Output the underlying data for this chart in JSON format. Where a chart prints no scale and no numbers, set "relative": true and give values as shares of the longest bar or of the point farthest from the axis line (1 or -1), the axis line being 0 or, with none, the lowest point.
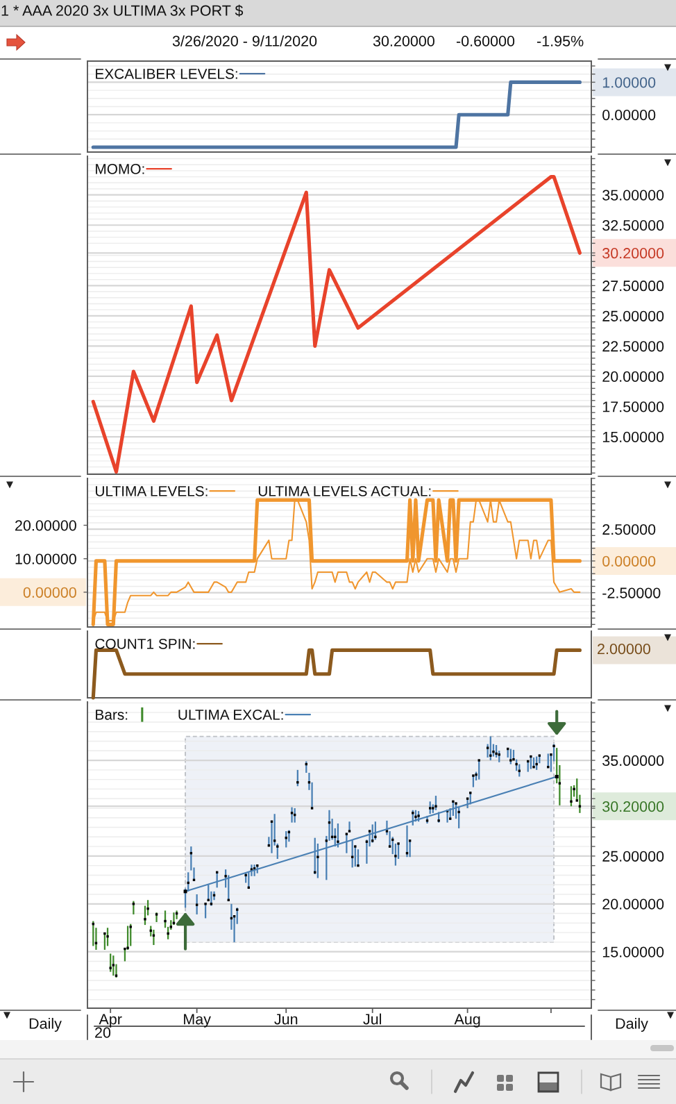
{
  "chart_data": [
    {
      "type": "line",
      "title": "1 * AAA 2020 3x ULTIMA 3x PORT $",
      "subtitle": "3/26/2020 - 9/11/2020",
      "annotations": [
        "30.20000",
        "-0.60000",
        "-1.95%"
      ],
      "series": [
        {
          "name": "EXCALIBER LEVELS:",
          "color": "#4e74a2",
          "x": [
            "2020-03-26",
            "2020-07-30",
            "2020-07-31",
            "2020-08-17",
            "2020-08-18",
            "2020-09-11"
          ],
          "values": [
            -1,
            -1,
            0,
            0,
            1,
            1
          ]
        }
      ],
      "xlim": [
        "2020-03-24",
        "2020-09-15"
      ],
      "ylim": [
        -1.15,
        1.65
      ],
      "yticks": [
        {
          "value": 1,
          "label": "1.00000"
        },
        {
          "value": 0,
          "label": "0.00000"
        },
        {
          "value": -1,
          "label": null
        },
        {
          "value": -0.75,
          "label": null
        },
        {
          "value": -0.5,
          "label": null
        },
        {
          "value": -0.25,
          "label": null
        },
        {
          "value": 0.25,
          "label": null
        },
        {
          "value": 0.5,
          "label": null
        },
        {
          "value": 0.75,
          "label": null
        },
        {
          "value": 1.25,
          "label": null
        },
        {
          "value": 1.5,
          "label": null
        }
      ],
      "grid": "y",
      "legend": "top left",
      "tick_labels": "y"
    },
    {
      "type": "line",
      "series": [
        {
          "name": "MOMO:",
          "color": "#e8432b",
          "x": [
            "2020-03-26",
            "2020-04-03",
            "2020-04-09",
            "2020-04-16",
            "2020-04-29",
            "2020-05-01",
            "2020-05-08",
            "2020-05-13",
            "2020-06-08",
            "2020-06-11",
            "2020-06-16",
            "2020-06-26",
            "2020-09-01",
            "2020-09-02",
            "2020-09-11"
          ],
          "values": [
            17.9,
            12.1,
            20.4,
            16.3,
            25.8,
            19.5,
            23.4,
            18.0,
            35.2,
            22.5,
            28.8,
            24.0,
            36.5,
            36.5,
            30.2
          ]
        }
      ],
      "xlim": [
        "2020-03-24",
        "2020-09-15"
      ],
      "ylim": [
        11.9,
        38.2
      ],
      "yticks": [
        {
          "value": 15,
          "label": "15.00000"
        },
        {
          "value": 17.5,
          "label": "17.50000"
        },
        {
          "value": 20,
          "label": "20.00000"
        },
        {
          "value": 22.5,
          "label": "22.50000"
        },
        {
          "value": 25,
          "label": "25.00000"
        },
        {
          "value": 27.5,
          "label": "27.50000"
        },
        {
          "value": 30.2,
          "label": "30.20000"
        },
        {
          "value": 32.5,
          "label": "32.50000"
        },
        {
          "value": 35,
          "label": "35.00000"
        },
        {
          "value": 12,
          "label": null
        },
        {
          "value": 12.5,
          "label": null
        },
        {
          "value": 13,
          "label": null
        },
        {
          "value": 13.5,
          "label": null
        },
        {
          "value": 14,
          "label": null
        },
        {
          "value": 14.5,
          "label": null
        },
        {
          "value": 15.5,
          "label": null
        },
        {
          "value": 16,
          "label": null
        },
        {
          "value": 16.5,
          "label": null
        },
        {
          "value": 17,
          "label": null
        },
        {
          "value": 18,
          "label": null
        },
        {
          "value": 18.5,
          "label": null
        },
        {
          "value": 19,
          "label": null
        },
        {
          "value": 19.5,
          "label": null
        },
        {
          "value": 20.5,
          "label": null
        },
        {
          "value": 21,
          "label": null
        },
        {
          "value": 21.5,
          "label": null
        },
        {
          "value": 22,
          "label": null
        },
        {
          "value": 23,
          "label": null
        },
        {
          "value": 23.5,
          "label": null
        },
        {
          "value": 24,
          "label": null
        },
        {
          "value": 24.5,
          "label": null
        },
        {
          "value": 25.5,
          "label": null
        },
        {
          "value": 26,
          "label": null
        },
        {
          "value": 26.5,
          "label": null
        },
        {
          "value": 27,
          "label": null
        },
        {
          "value": 28,
          "label": null
        },
        {
          "value": 28.5,
          "label": null
        },
        {
          "value": 29,
          "label": null
        },
        {
          "value": 29.5,
          "label": null
        },
        {
          "value": 30,
          "label": null
        },
        {
          "value": 31,
          "label": null
        },
        {
          "value": 31.5,
          "label": null
        },
        {
          "value": 32,
          "label": null
        },
        {
          "value": 33,
          "label": null
        },
        {
          "value": 33.5,
          "label": null
        },
        {
          "value": 34,
          "label": null
        },
        {
          "value": 34.5,
          "label": null
        },
        {
          "value": 35.5,
          "label": null
        },
        {
          "value": 36,
          "label": null
        },
        {
          "value": 36.5,
          "label": null
        },
        {
          "value": 37,
          "label": null
        },
        {
          "value": 37.5,
          "label": null
        },
        {
          "value": 38,
          "label": null
        }
      ],
      "grid": "y",
      "legend": "top left",
      "tick_labels": "y"
    },
    {
      "type": "line",
      "x": [
        "2020-03-26",
        "2020-03-27",
        "2020-03-30",
        "2020-03-31",
        "2020-04-01",
        "2020-04-02",
        "2020-04-03",
        "2020-04-06",
        "2020-04-07",
        "2020-04-08",
        "2020-04-09",
        "2020-04-13",
        "2020-04-14",
        "2020-04-15",
        "2020-04-16",
        "2020-04-17",
        "2020-04-20",
        "2020-04-21",
        "2020-04-22",
        "2020-04-23",
        "2020-04-24",
        "2020-04-27",
        "2020-04-28",
        "2020-04-29",
        "2020-04-30",
        "2020-05-01",
        "2020-05-04",
        "2020-05-05",
        "2020-05-06",
        "2020-05-07",
        "2020-05-08",
        "2020-05-11",
        "2020-05-12",
        "2020-05-13",
        "2020-05-14",
        "2020-05-15",
        "2020-05-18",
        "2020-05-19",
        "2020-05-20",
        "2020-05-21",
        "2020-05-22",
        "2020-05-26",
        "2020-05-27",
        "2020-05-28",
        "2020-05-29",
        "2020-06-01",
        "2020-06-02",
        "2020-06-03",
        "2020-06-04",
        "2020-06-05",
        "2020-06-08",
        "2020-06-09",
        "2020-06-10",
        "2020-06-11",
        "2020-06-12",
        "2020-06-15",
        "2020-06-16",
        "2020-06-17",
        "2020-06-18",
        "2020-06-19",
        "2020-06-22",
        "2020-06-23",
        "2020-06-24",
        "2020-06-25",
        "2020-06-26",
        "2020-06-29",
        "2020-06-30",
        "2020-07-01",
        "2020-07-02",
        "2020-07-06",
        "2020-07-07",
        "2020-07-08",
        "2020-07-09",
        "2020-07-10",
        "2020-07-13",
        "2020-07-14",
        "2020-07-15",
        "2020-07-16",
        "2020-07-17",
        "2020-07-20",
        "2020-07-21",
        "2020-07-22",
        "2020-07-23",
        "2020-07-24",
        "2020-07-27",
        "2020-07-28",
        "2020-07-29",
        "2020-07-30",
        "2020-07-31",
        "2020-08-03",
        "2020-08-04",
        "2020-08-05",
        "2020-08-06",
        "2020-08-07",
        "2020-08-10",
        "2020-08-11",
        "2020-08-12",
        "2020-08-13",
        "2020-08-14",
        "2020-08-17",
        "2020-08-18",
        "2020-08-19",
        "2020-08-20",
        "2020-08-21",
        "2020-08-24",
        "2020-08-25",
        "2020-08-26",
        "2020-08-27",
        "2020-08-28",
        "2020-08-31",
        "2020-09-01",
        "2020-09-02",
        "2020-09-03",
        "2020-09-04",
        "2020-09-08",
        "2020-09-09",
        "2020-09-10",
        "2020-09-11"
      ],
      "series": [
        {
          "name": "ULTIMA LEVELS:",
          "color": "#f0962e",
          "axis": "y2",
          "values": [
            -5,
            0,
            0,
            -5,
            -5,
            -5,
            0,
            0,
            0,
            0,
            0,
            0,
            0,
            0,
            0,
            0,
            0,
            0,
            0,
            0,
            0,
            0,
            0,
            0,
            0,
            0,
            0,
            0,
            0,
            0,
            0,
            0,
            0,
            0,
            0,
            0,
            0,
            0,
            0,
            0,
            4.8,
            4.8,
            4.8,
            4.8,
            4.8,
            4.8,
            4.8,
            4.8,
            4.8,
            4.8,
            4.8,
            4.8,
            0,
            0,
            0,
            0,
            0,
            0,
            0,
            0,
            0,
            0,
            0,
            0,
            0,
            0,
            0,
            0,
            0,
            0,
            0,
            0,
            0,
            0,
            0,
            4.8,
            0,
            4.8,
            0,
            4.8,
            4.8,
            4.8,
            0,
            4.8,
            0,
            4.8,
            4.8,
            0,
            4.8,
            4.8,
            4.8,
            4.8,
            4.8,
            4.8,
            4.8,
            4.8,
            4.8,
            4.8,
            4.8,
            4.8,
            4.8,
            4.8,
            4.8,
            4.8,
            4.8,
            4.8,
            4.8,
            4.8,
            4.8,
            4.8,
            4.8,
            0,
            0,
            0,
            0,
            0,
            0,
            0
          ]
        },
        {
          "name": "ULTIMA LEVELS ACTUAL:",
          "color": "#f0962e",
          "values": [
            -8.5,
            -6,
            -6,
            -8.5,
            -8.5,
            -8.5,
            -6,
            -6,
            -3,
            -1,
            -1,
            -1,
            -1,
            -1,
            0,
            -1,
            -1,
            -1,
            0,
            0,
            0,
            1.5,
            3,
            1.5,
            0,
            0,
            0,
            0,
            1.5,
            3,
            3,
            1.5,
            0,
            0,
            1.5,
            3,
            3,
            6,
            6,
            6,
            10,
            15.5,
            10,
            10,
            10,
            10,
            15.5,
            15.5,
            27.5,
            27.5,
            21,
            15.5,
            1,
            3,
            6,
            6,
            6,
            6,
            3,
            6,
            6,
            3,
            3,
            1,
            3,
            6,
            3,
            6,
            6,
            3,
            3,
            1,
            3,
            3,
            3,
            10,
            6,
            10,
            6,
            10,
            10,
            10,
            6,
            10,
            6,
            10,
            10,
            6,
            10,
            10,
            21,
            21,
            27.5,
            27.5,
            21,
            27.5,
            21,
            21,
            27.5,
            21,
            21,
            15.5,
            10,
            15.5,
            15.5,
            10,
            15.5,
            15.5,
            10,
            15.5,
            15.5,
            3,
            1.5,
            0,
            1,
            0,
            0,
            0
          ]
        }
      ],
      "xlim": [
        "2020-03-24",
        "2020-09-15"
      ],
      "ylim": [
        -10.4,
        34
      ],
      "yticks": [
        {
          "value": 0,
          "label": "0.00000"
        },
        {
          "value": 10,
          "label": "10.00000"
        },
        {
          "value": 20,
          "label": "20.00000"
        }
      ],
      "y2lim": [
        -5.2,
        6.5
      ],
      "y2ticks": [
        {
          "value": -2.5,
          "label": "-2.50000"
        },
        {
          "value": 0,
          "label": "0.00000"
        },
        {
          "value": 2.5,
          "label": "2.50000"
        },
        {
          "value": -5,
          "label": null
        },
        {
          "value": -4.5,
          "label": null
        },
        {
          "value": -4,
          "label": null
        },
        {
          "value": -3.5,
          "label": null
        },
        {
          "value": -3,
          "label": null
        },
        {
          "value": -2,
          "label": null
        },
        {
          "value": -1.5,
          "label": null
        },
        {
          "value": -1,
          "label": null
        },
        {
          "value": -0.5,
          "label": null
        },
        {
          "value": 0.5,
          "label": null
        },
        {
          "value": 1,
          "label": null
        },
        {
          "value": 1.5,
          "label": null
        },
        {
          "value": 2,
          "label": null
        },
        {
          "value": 3,
          "label": null
        },
        {
          "value": 3.5,
          "label": null
        },
        {
          "value": 4,
          "label": null
        },
        {
          "value": 4.5,
          "label": null
        },
        {
          "value": 5,
          "label": null
        },
        {
          "value": 5.5,
          "label": null
        },
        {
          "value": 6,
          "label": null
        },
        {
          "value": 6.5,
          "label": null
        }
      ],
      "grid": "y2",
      "legend": "top left",
      "tick_labels": "y"
    },
    {
      "type": "line",
      "relative": true,
      "series": [
        {
          "name": "COUNT1 SPIN:",
          "color": "#8c5a1e",
          "x": [
            "2020-03-26",
            "2020-03-27",
            "2020-04-03",
            "2020-04-06",
            "2020-06-08",
            "2020-06-09",
            "2020-06-10",
            "2020-06-11",
            "2020-06-16",
            "2020-06-17",
            "2020-07-21",
            "2020-07-22",
            "2020-09-02",
            "2020-09-03",
            "2020-09-11"
          ],
          "values": [
            0,
            1,
            1,
            0.5,
            0.5,
            1,
            1,
            0.5,
            0.5,
            1,
            1,
            0.5,
            0.5,
            1,
            1
          ]
        }
      ],
      "xlim": [
        "2020-03-24",
        "2020-09-15"
      ],
      "annotations": [
        "2.00000"
      ],
      "legend": "top left",
      "tick_labels": false
    },
    {
      "type": "bar",
      "series": [
        {
          "type": "bar",
          "name": "Bars:",
          "x": [
            "2020-03-26",
            "2020-03-27",
            "2020-03-30",
            "2020-03-31",
            "2020-04-01",
            "2020-04-02",
            "2020-04-03",
            "2020-04-06",
            "2020-04-07",
            "2020-04-08",
            "2020-04-09",
            "2020-04-13",
            "2020-04-14",
            "2020-04-15",
            "2020-04-16",
            "2020-04-17",
            "2020-04-20",
            "2020-04-21",
            "2020-04-22",
            "2020-04-23",
            "2020-04-24",
            "2020-04-27",
            "2020-04-28",
            "2020-04-29",
            "2020-04-30",
            "2020-05-01",
            "2020-05-04",
            "2020-05-05",
            "2020-05-06",
            "2020-05-07",
            "2020-05-08",
            "2020-05-11",
            "2020-05-12",
            "2020-05-13",
            "2020-05-14",
            "2020-05-15",
            "2020-05-18",
            "2020-05-19",
            "2020-05-20",
            "2020-05-21",
            "2020-05-22",
            "2020-05-26",
            "2020-05-27",
            "2020-05-28",
            "2020-05-29",
            "2020-06-01",
            "2020-06-02",
            "2020-06-03",
            "2020-06-04",
            "2020-06-05",
            "2020-06-08",
            "2020-06-09",
            "2020-06-10",
            "2020-06-11",
            "2020-06-12",
            "2020-06-15",
            "2020-06-16",
            "2020-06-17",
            "2020-06-18",
            "2020-06-19",
            "2020-06-22",
            "2020-06-23",
            "2020-06-24",
            "2020-06-25",
            "2020-06-26",
            "2020-06-29",
            "2020-06-30",
            "2020-07-01",
            "2020-07-02",
            "2020-07-06",
            "2020-07-07",
            "2020-07-08",
            "2020-07-09",
            "2020-07-10",
            "2020-07-13",
            "2020-07-14",
            "2020-07-15",
            "2020-07-16",
            "2020-07-17",
            "2020-07-20",
            "2020-07-21",
            "2020-07-22",
            "2020-07-23",
            "2020-07-24",
            "2020-07-27",
            "2020-07-28",
            "2020-07-29",
            "2020-07-30",
            "2020-07-31",
            "2020-08-03",
            "2020-08-04",
            "2020-08-05",
            "2020-08-06",
            "2020-08-07",
            "2020-08-10",
            "2020-08-11",
            "2020-08-12",
            "2020-08-13",
            "2020-08-14",
            "2020-08-17",
            "2020-08-18",
            "2020-08-19",
            "2020-08-20",
            "2020-08-21",
            "2020-08-24",
            "2020-08-25",
            "2020-08-26",
            "2020-08-27",
            "2020-08-28",
            "2020-08-31",
            "2020-09-01",
            "2020-09-02",
            "2020-09-03",
            "2020-09-04",
            "2020-09-08",
            "2020-09-09",
            "2020-09-10",
            "2020-09-11"
          ],
          "base": [
            15.6,
            15.2,
            15.2,
            15.6,
            12.9,
            12.5,
            12.3,
            14.0,
            15.2,
            15.6,
            18.9,
            17.8,
            18.8,
            16.6,
            15.7,
            18.1,
            17.5,
            16.3,
            17.3,
            17.8,
            18.4,
            19.6,
            21.3,
            23.5,
            22.4,
            18.9,
            18.5,
            20.3,
            19.8,
            20.4,
            21.7,
            21.7,
            20.4,
            17.3,
            16.0,
            17.9,
            22.2,
            21.7,
            22.9,
            22.9,
            23.2,
            26.0,
            25.3,
            26.1,
            24.7,
            25.9,
            26.5,
            28.5,
            28.5,
            32.3,
            33.7,
            31.9,
            29.9,
            23.1,
            22.7,
            22.5,
            26.6,
            26.7,
            26.0,
            25.9,
            25.3,
            27.5,
            23.8,
            23.9,
            23.9,
            24.2,
            26.0,
            26.4,
            26.7,
            27.2,
            25.9,
            25.2,
            24.0,
            24.7,
            24.9,
            24.9,
            28.2,
            28.6,
            28.6,
            28.4,
            29.4,
            29.5,
            29.8,
            28.5,
            28.5,
            28.8,
            29.2,
            28.9,
            27.9,
            30.0,
            30.4,
            32.2,
            32.9,
            33.0,
            35.3,
            35.0,
            35.4,
            35.3,
            34.8,
            35.3,
            34.6,
            35.1,
            33.9,
            33.3,
            33.8,
            34.1,
            34.2,
            34.0,
            34.7,
            34.3,
            33.8,
            34.9,
            32.6,
            30.3,
            30.2,
            31.2,
            30.8,
            29.5
          ],
          "values": [
            2.6,
            2.3,
            1.8,
            1.9,
            1.9,
            2.1,
            1.4,
            1.4,
            2.5,
            2.3,
            1.4,
            2.0,
            1.6,
            1.1,
            1.6,
            1.0,
            1.8,
            1.3,
            1.0,
            1.3,
            0.9,
            2.0,
            2.0,
            2.5,
            1.4,
            2.1,
            1.6,
            1.7,
            1.5,
            0.9,
            1.6,
            1.9,
            2.6,
            2.7,
            2.7,
            1.7,
            1.0,
            1.6,
            1.2,
            1.2,
            0.9,
            1.0,
            3.4,
            3.3,
            1.6,
            1.7,
            1.2,
            1.6,
            1.5,
            1.7,
            1.2,
            1.8,
            2.8,
            3.8,
            3.6,
            4.6,
            3.2,
            2.2,
            1.9,
            2.5,
            2.1,
            1.1,
            2.9,
            2.2,
            1.8,
            2.5,
            1.6,
            1.9,
            1.9,
            1.5,
            1.7,
            1.8,
            2.3,
            1.6,
            3.3,
            1.7,
            1.6,
            1.2,
            1.1,
            0.8,
            1.3,
            0.9,
            1.5,
            1.1,
            1.3,
            1.2,
            1.5,
            1.7,
            2.2,
            1.0,
            1.3,
            1.3,
            0.9,
            2.0,
            1.4,
            2.5,
            1.3,
            1.3,
            1.2,
            0.9,
            1.6,
            1.0,
            1.2,
            1.3,
            1.2,
            1.3,
            1.1,
            1.4,
            0.9,
            1.4,
            1.9,
            1.8,
            3.7,
            4.2,
            2.1,
            1.2,
            2.3,
            1.9
          ],
          "colors": [
            "#3f8a2b",
            "#3f8a2b",
            "#3f8a2b",
            "#3f8a2b",
            "#3f8a2b",
            "#3f8a2b",
            "#3f8a2b",
            "#3f8a2b",
            "#3f8a2b",
            "#3f8a2b",
            "#3f8a2b",
            "#3f8a2b",
            "#3f8a2b",
            "#3f8a2b",
            "#3f8a2b",
            "#3f8a2b",
            "#3f8a2b",
            "#3f8a2b",
            "#3f8a2b",
            "#3f8a2b",
            "#3f8a2b",
            "#4a80b4",
            "#4a80b4",
            "#4a80b4",
            "#4a80b4",
            "#4a80b4",
            "#4a80b4",
            "#4a80b4",
            "#4a80b4",
            "#4a80b4",
            "#4a80b4",
            "#4a80b4",
            "#4a80b4",
            "#4a80b4",
            "#4a80b4",
            "#4a80b4",
            "#4a80b4",
            "#4a80b4",
            "#4a80b4",
            "#4a80b4",
            "#4a80b4",
            "#4a80b4",
            "#4a80b4",
            "#4a80b4",
            "#4a80b4",
            "#4a80b4",
            "#4a80b4",
            "#4a80b4",
            "#4a80b4",
            "#4a80b4",
            "#4a80b4",
            "#4a80b4",
            "#4a80b4",
            "#4a80b4",
            "#4a80b4",
            "#4a80b4",
            "#4a80b4",
            "#4a80b4",
            "#4a80b4",
            "#4a80b4",
            "#4a80b4",
            "#4a80b4",
            "#4a80b4",
            "#4a80b4",
            "#4a80b4",
            "#4a80b4",
            "#4a80b4",
            "#4a80b4",
            "#4a80b4",
            "#4a80b4",
            "#4a80b4",
            "#4a80b4",
            "#4a80b4",
            "#4a80b4",
            "#4a80b4",
            "#4a80b4",
            "#4a80b4",
            "#4a80b4",
            "#4a80b4",
            "#4a80b4",
            "#4a80b4",
            "#4a80b4",
            "#4a80b4",
            "#4a80b4",
            "#4a80b4",
            "#4a80b4",
            "#4a80b4",
            "#4a80b4",
            "#4a80b4",
            "#4a80b4",
            "#4a80b4",
            "#4a80b4",
            "#4a80b4",
            "#4a80b4",
            "#4a80b4",
            "#4a80b4",
            "#4a80b4",
            "#4a80b4",
            "#4a80b4",
            "#4a80b4",
            "#4a80b4",
            "#4a80b4",
            "#4a80b4",
            "#4a80b4",
            "#4a80b4",
            "#4a80b4",
            "#4a80b4",
            "#4a80b4",
            "#4a80b4",
            "#4a80b4",
            "#4a80b4",
            "#4a80b4",
            "#3f8a2b",
            "#3f8a2b",
            "#3f8a2b",
            "#3f8a2b",
            "#3f8a2b",
            "#3f8a2b"
          ]
        },
        {
          "type": "scatter",
          "color": "#000000",
          "marker": "square",
          "x": [
            "2020-03-26",
            "2020-03-27",
            "2020-03-30",
            "2020-03-31",
            "2020-04-01",
            "2020-04-02",
            "2020-04-03",
            "2020-04-06",
            "2020-04-07",
            "2020-04-08",
            "2020-04-09",
            "2020-04-13",
            "2020-04-14",
            "2020-04-15",
            "2020-04-16",
            "2020-04-17",
            "2020-04-20",
            "2020-04-21",
            "2020-04-22",
            "2020-04-23",
            "2020-04-24",
            "2020-04-27",
            "2020-04-28",
            "2020-04-29",
            "2020-04-30",
            "2020-05-01",
            "2020-05-04",
            "2020-05-05",
            "2020-05-06",
            "2020-05-07",
            "2020-05-08",
            "2020-05-11",
            "2020-05-12",
            "2020-05-13",
            "2020-05-14",
            "2020-05-15",
            "2020-05-18",
            "2020-05-19",
            "2020-05-20",
            "2020-05-21",
            "2020-05-22",
            "2020-05-26",
            "2020-05-27",
            "2020-05-28",
            "2020-05-29",
            "2020-06-01",
            "2020-06-02",
            "2020-06-03",
            "2020-06-04",
            "2020-06-05",
            "2020-06-08",
            "2020-06-09",
            "2020-06-10",
            "2020-06-11",
            "2020-06-12",
            "2020-06-15",
            "2020-06-16",
            "2020-06-17",
            "2020-06-18",
            "2020-06-19",
            "2020-06-22",
            "2020-06-23",
            "2020-06-24",
            "2020-06-25",
            "2020-06-26",
            "2020-06-29",
            "2020-06-30",
            "2020-07-01",
            "2020-07-02",
            "2020-07-06",
            "2020-07-07",
            "2020-07-08",
            "2020-07-09",
            "2020-07-10",
            "2020-07-13",
            "2020-07-14",
            "2020-07-15",
            "2020-07-16",
            "2020-07-17",
            "2020-07-20",
            "2020-07-21",
            "2020-07-22",
            "2020-07-23",
            "2020-07-24",
            "2020-07-27",
            "2020-07-28",
            "2020-07-29",
            "2020-07-30",
            "2020-07-31",
            "2020-08-03",
            "2020-08-04",
            "2020-08-05",
            "2020-08-06",
            "2020-08-07",
            "2020-08-10",
            "2020-08-11",
            "2020-08-12",
            "2020-08-13",
            "2020-08-14",
            "2020-08-17",
            "2020-08-18",
            "2020-08-19",
            "2020-08-20",
            "2020-08-21",
            "2020-08-24",
            "2020-08-25",
            "2020-08-26",
            "2020-08-27",
            "2020-08-28",
            "2020-08-31",
            "2020-09-01",
            "2020-09-02",
            "2020-09-03",
            "2020-09-04",
            "2020-09-08",
            "2020-09-09",
            "2020-09-10",
            "2020-09-11"
          ],
          "values": [
            17.9,
            15.9,
            16.9,
            16.6,
            13.3,
            13.6,
            12.5,
            15.3,
            15.4,
            17.6,
            20.0,
            18.4,
            19.5,
            17.2,
            16.7,
            18.9,
            18.2,
            16.9,
            17.6,
            18.0,
            19.0,
            null,
            22.2,
            25.3,
            22.5,
            19.9,
            20.0,
            20.4,
            20.0,
            20.9,
            23.3,
            22.9,
            20.4,
            18.5,
            18.7,
            19.4,
            23.0,
            21.7,
            23.6,
            23.7,
            24.0,
            26.1,
            28.6,
            26.6,
            26.0,
            26.9,
            27.5,
            29.5,
            29.3,
            32.7,
            34.6,
            32.7,
            30.0,
            23.3,
            24.9,
            26.6,
            28.5,
            27.0,
            27.0,
            26.5,
            27.3,
            27.6,
            24.9,
            26.0,
            24.0,
            26.5,
            27.6,
            26.6,
            27.0,
            27.6,
            26.0,
            26.7,
            25.0,
            26.3,
            25.3,
            26.6,
            29.5,
            29.1,
            29.2,
            28.7,
            30.0,
            30.0,
            30.2,
            28.7,
            29.7,
            28.9,
            30.7,
            30.5,
            29.6,
            31.0,
            31.6,
            33.4,
            33.5,
            35.0,
            36.3,
            35.5,
            35.9,
            35.7,
            35.6,
            36.2,
            35.0,
            35.1,
            34.6,
            33.9,
            34.9,
            35.4,
            34.3,
            34.6,
            35.5,
            34.3,
            35.6,
            36.5,
            null,
            32.6,
            30.7,
            32.0,
            30.8,
            30.2
          ]
        },
        {
          "type": "line",
          "name": "ULTIMA EXCAL:",
          "color": "#4a80b4",
          "marker": "square",
          "x": [
            "2020-04-27",
            "2020-09-03"
          ],
          "values": [
            21.3,
            33.3
          ]
        }
      ],
      "bands": [
        {
          "axis": "x",
          "from": "2020-04-27",
          "to": "2020-09-02",
          "color": "#eef1f7"
        }
      ],
      "xlim": [
        "2020-03-24",
        "2020-09-15"
      ],
      "xticks": [
        {
          "value": "2020-04-01",
          "label": "Apr"
        },
        {
          "value": "2020-05-01",
          "label": "May"
        },
        {
          "value": "2020-06-01",
          "label": "Jun"
        },
        {
          "value": "2020-07-01",
          "label": "Jul"
        },
        {
          "value": "2020-08-03",
          "label": "Aug"
        },
        {
          "value": "2020-09-01",
          "label": null
        }
      ],
      "ylim": [
        9.1,
        41.1
      ],
      "yticks": [
        {
          "value": 15,
          "label": "15.00000"
        },
        {
          "value": 20,
          "label": "20.00000"
        },
        {
          "value": 25,
          "label": "25.00000"
        },
        {
          "value": 30.2,
          "label": "30.20000"
        },
        {
          "value": 35,
          "label": "35.00000"
        },
        {
          "value": 10,
          "label": null
        },
        {
          "value": 11,
          "label": null
        },
        {
          "value": 12,
          "label": null
        },
        {
          "value": 13,
          "label": null
        },
        {
          "value": 14,
          "label": null
        },
        {
          "value": 16,
          "label": null
        },
        {
          "value": 17,
          "label": null
        },
        {
          "value": 18,
          "label": null
        },
        {
          "value": 19,
          "label": null
        },
        {
          "value": 21,
          "label": null
        },
        {
          "value": 22,
          "label": null
        },
        {
          "value": 23,
          "label": null
        },
        {
          "value": 24,
          "label": null
        },
        {
          "value": 26,
          "label": null
        },
        {
          "value": 27,
          "label": null
        },
        {
          "value": 28,
          "label": null
        },
        {
          "value": 29,
          "label": null
        },
        {
          "value": 30,
          "label": null
        },
        {
          "value": 31,
          "label": null
        },
        {
          "value": 32,
          "label": null
        },
        {
          "value": 33,
          "label": null
        },
        {
          "value": 34,
          "label": null
        },
        {
          "value": 36,
          "label": null
        },
        {
          "value": 37,
          "label": null
        },
        {
          "value": 38,
          "label": null
        },
        {
          "value": 39,
          "label": null
        },
        {
          "value": 40,
          "label": null
        },
        {
          "value": 41,
          "label": null
        }
      ],
      "grid": "y",
      "legend": "top left",
      "annotations": [
        "20",
        "Daily",
        "Daily"
      ]
    }
  ]
}
